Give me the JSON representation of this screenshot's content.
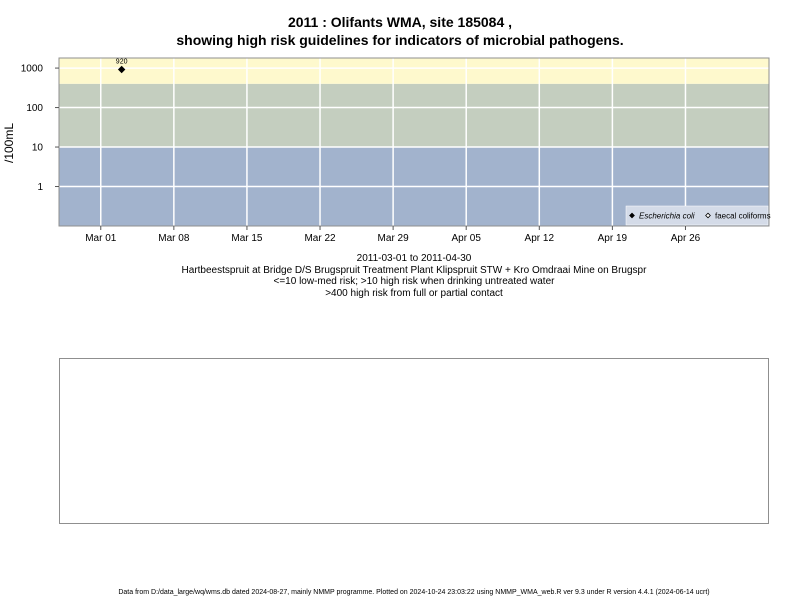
{
  "title_line1": "2011 : Olifants WMA, site 185084 ,",
  "title_line2": "showing high risk guidelines for indicators of microbial pathogens.",
  "chart_data": {
    "type": "scatter",
    "title": "2011 : Olifants WMA, site 185084 , showing high risk guidelines for indicators of microbial pathogens.",
    "ylabel": "/100mL",
    "y_scale": "log",
    "xlim": [
      "2011-02-25",
      "2011-05-04"
    ],
    "x_ticks": [
      {
        "date": "2011-03-01",
        "label": "Mar 01"
      },
      {
        "date": "2011-03-08",
        "label": "Mar 08"
      },
      {
        "date": "2011-03-15",
        "label": "Mar 15"
      },
      {
        "date": "2011-03-22",
        "label": "Mar 22"
      },
      {
        "date": "2011-03-29",
        "label": "Mar 29"
      },
      {
        "date": "2011-04-05",
        "label": "Apr 05"
      },
      {
        "date": "2011-04-12",
        "label": "Apr 12"
      },
      {
        "date": "2011-04-19",
        "label": "Apr 19"
      },
      {
        "date": "2011-04-26",
        "label": "Apr 26"
      }
    ],
    "y_ticks": [
      {
        "value": 1,
        "label": "1"
      },
      {
        "value": 10,
        "label": "10"
      },
      {
        "value": 100,
        "label": "100"
      },
      {
        "value": 1000,
        "label": "1000"
      }
    ],
    "grid": true,
    "risk_bands": [
      {
        "from": 0.1,
        "to": 10,
        "color": "#a2b3cd"
      },
      {
        "from": 10,
        "to": 400,
        "color": "#c4cebf"
      },
      {
        "from": 400,
        "to": 1800,
        "color": "#fef9cd"
      }
    ],
    "series": [
      {
        "name": "Escherichia coli",
        "marker": "filled-diamond",
        "points": [
          {
            "x": "2011-03-03",
            "y": 920,
            "label": "920"
          }
        ]
      },
      {
        "name": "faecal coliforms",
        "marker": "open-diamond",
        "points": []
      }
    ],
    "legend_position": "bottom-right"
  },
  "caption": {
    "line1": "2011-03-01 to 2011-04-30",
    "line2": "Hartbeestspruit at Bridge D/S Brugspruit Treatment Plant Klipspruit STW + Kro Omdraai Mine on Brugspr",
    "line3": "<=10 low-med risk; >10 high risk when drinking untreated water",
    "line4": ">400 high risk from full or partial contact"
  },
  "footer": "Data from D:/data_large/wq/wms.db dated 2024-08-27, mainly NMMP programme. Plotted on 2024-10-24 23:03:22 using NMMP_WMA_web.R ver 9.3 under R version 4.4.1 (2024-06-14 ucrt)"
}
